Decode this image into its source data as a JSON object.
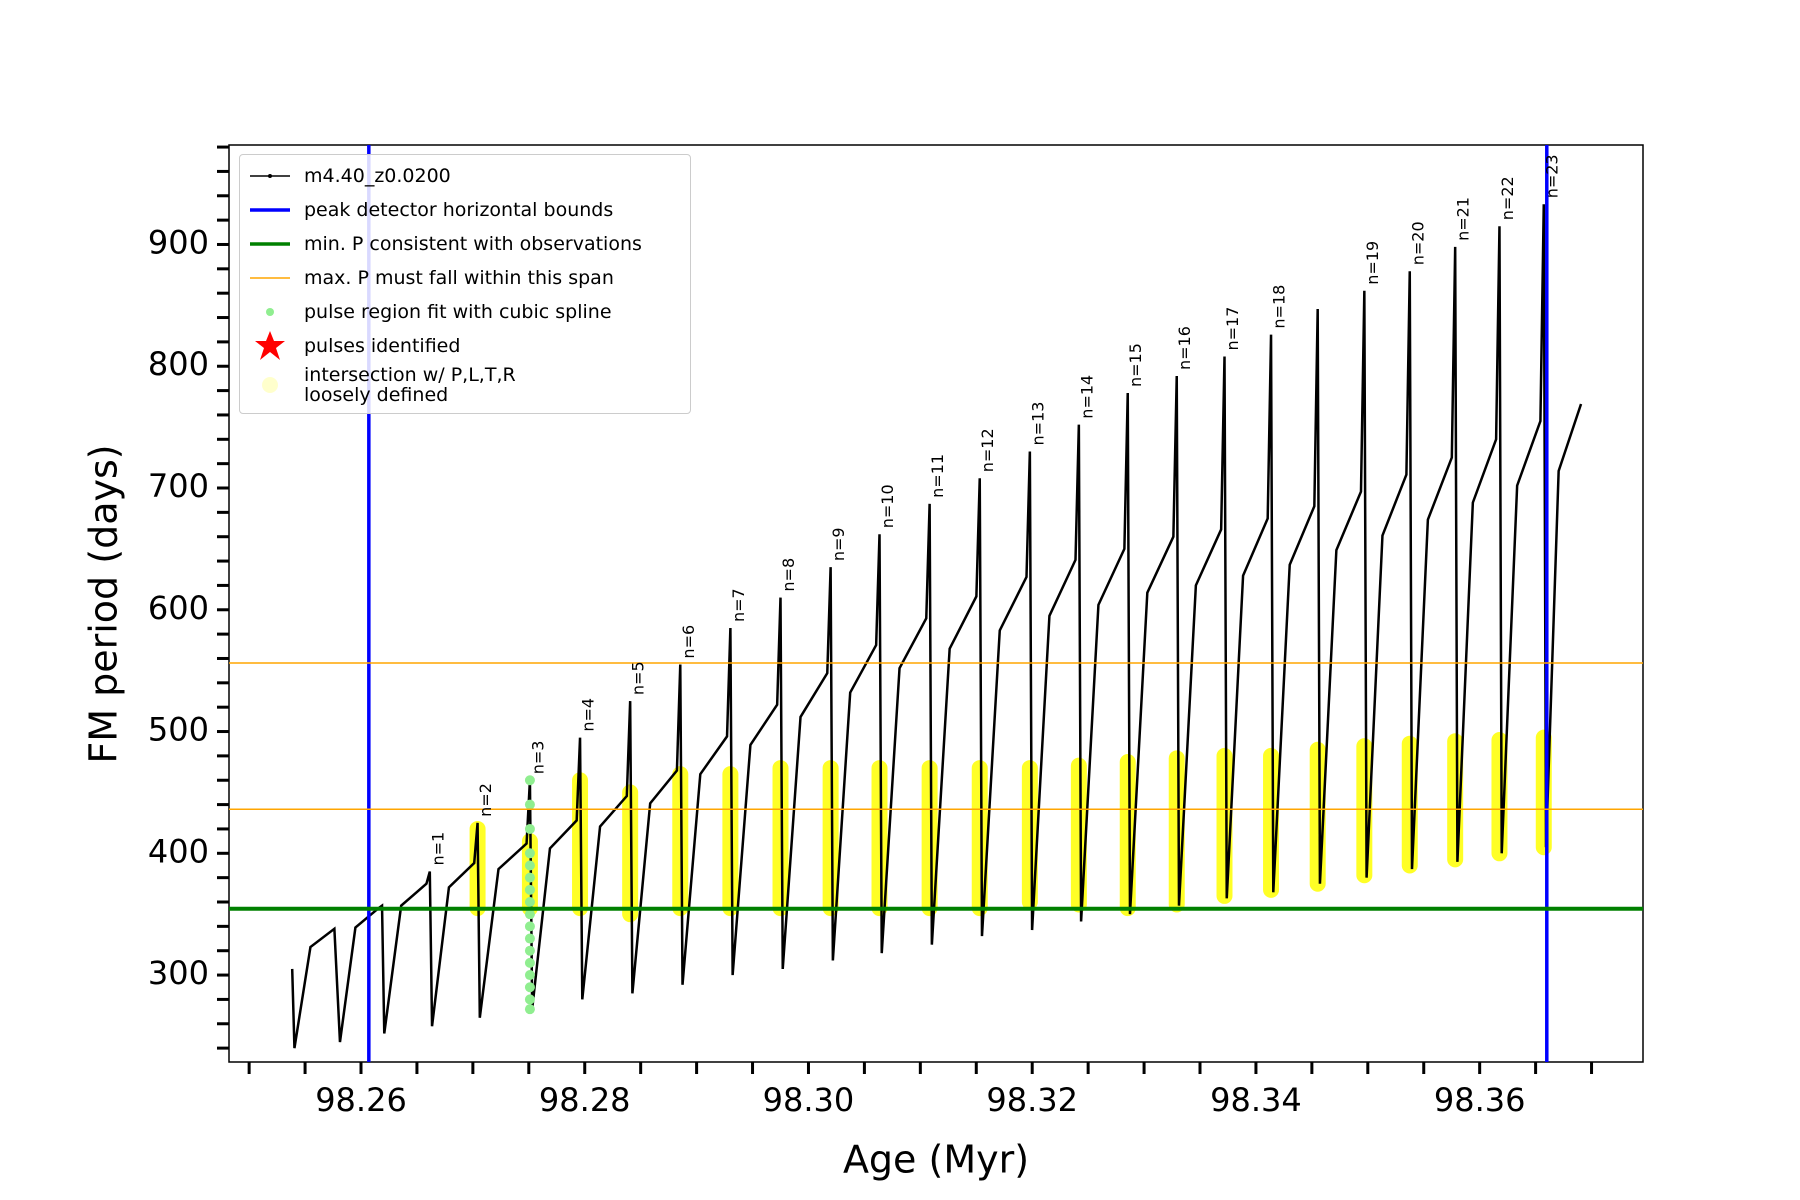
{
  "chart_data": {
    "type": "line",
    "xlabel": "Age (Myr)",
    "ylabel": "FM period (days)",
    "xlim": [
      98.2482,
      98.3746
    ],
    "ylim": [
      228.6,
      981.7
    ],
    "xticks": [
      98.26,
      98.28,
      {
        "value": 98.3,
        "label": "98.30"
      },
      98.32,
      98.34,
      98.36
    ],
    "xminor_ticks": [
      98.25,
      98.255,
      98.265,
      98.27,
      98.275,
      98.285,
      98.29,
      98.295,
      98.305,
      98.31,
      98.315,
      98.325,
      98.33,
      98.335,
      98.345,
      98.35,
      98.355,
      98.365,
      98.37
    ],
    "yticks": [
      300,
      400,
      500,
      600,
      700,
      800,
      900
    ],
    "yminor_ticks": [
      240,
      260,
      280,
      320,
      340,
      360,
      380,
      420,
      440,
      460,
      480,
      520,
      540,
      560,
      580,
      620,
      640,
      660,
      680,
      720,
      740,
      760,
      780,
      820,
      840,
      860,
      880,
      920,
      940,
      960,
      980
    ],
    "legend": "upper left",
    "series": [
      {
        "name": "m4.40_z0.0200",
        "color": "#000000",
        "kind": "line",
        "x": [
          98.25385,
          98.25405,
          98.25548,
          98.25762,
          98.25812,
          98.2595,
          98.26158,
          98.26188,
          98.26208,
          98.26359,
          98.26585,
          98.26615,
          98.26635,
          98.26786,
          98.27012,
          98.27042,
          98.27062,
          98.27229,
          98.2748,
          98.2751,
          98.2753,
          98.27689,
          98.27928,
          98.27958,
          98.27978,
          98.28137,
          98.28376,
          98.28406,
          98.28426,
          98.28585,
          98.28824,
          98.28854,
          98.28874,
          98.29033,
          98.29272,
          98.29302,
          98.29322,
          98.29481,
          98.2972,
          98.2975,
          98.2977,
          98.29929,
          98.30168,
          98.30198,
          98.30218,
          98.30373,
          98.30605,
          98.30635,
          98.30655,
          98.30814,
          98.31053,
          98.31083,
          98.31103,
          98.31262,
          98.31501,
          98.31531,
          98.31551,
          98.3171,
          98.31949,
          98.31979,
          98.31999,
          98.32154,
          98.32387,
          98.32417,
          98.32437,
          98.32592,
          98.32824,
          98.32854,
          98.32874,
          98.33029,
          98.33262,
          98.33292,
          98.33312,
          98.33463,
          98.33689,
          98.33719,
          98.33739,
          98.33885,
          98.34105,
          98.34135,
          98.34155,
          98.34302,
          98.34522,
          98.34552,
          98.34572,
          98.34719,
          98.34939,
          98.34969,
          98.34989,
          98.35131,
          98.35345,
          98.35375,
          98.35395,
          98.35537,
          98.35751,
          98.35781,
          98.35801,
          98.35939,
          98.36147,
          98.36177,
          98.36197,
          98.36335,
          98.36543,
          98.36573,
          98.36593,
          98.36706,
          98.36906
        ],
        "values": [
          305,
          240,
          323,
          338,
          245,
          339,
          355,
          357,
          252,
          357,
          375,
          385,
          258,
          372,
          392,
          425,
          265,
          387,
          408,
          460,
          272,
          404,
          427,
          495,
          280,
          422,
          447,
          525,
          285,
          441,
          468,
          555,
          292,
          465,
          496,
          585,
          300,
          489,
          522,
          610,
          305,
          512,
          548,
          635,
          312,
          532,
          571,
          662,
          318,
          552,
          593,
          687,
          325,
          568,
          611,
          708,
          332,
          583,
          627,
          730,
          337,
          595,
          641,
          752,
          344,
          604,
          650,
          778,
          350,
          614,
          660,
          792,
          357,
          620,
          666,
          808,
          363,
          628,
          675,
          826,
          368,
          637,
          685,
          847,
          375,
          649,
          697,
          862,
          380,
          661,
          711,
          878,
          387,
          674,
          725,
          898,
          393,
          688,
          740,
          915,
          400,
          702,
          755,
          933,
          405,
          714,
          769
        ]
      },
      {
        "name": "peak detector horizontal bounds",
        "color": "#0000ff",
        "kind": "vline",
        "x": [
          98.2607,
          98.366
        ]
      },
      {
        "name": "min. P consistent with observations",
        "color": "#008000",
        "kind": "hline",
        "values": [
          354.5
        ]
      },
      {
        "name": "max. P must fall within this span",
        "color": "#ffa500",
        "kind": "hline",
        "values": [
          436.2,
          556.3
        ]
      },
      {
        "name": "pulse region fit with cubic spline",
        "color": "#90ee90",
        "kind": "scatter",
        "x": [
          98.2751,
          98.2751,
          98.2751,
          98.2751,
          98.2751,
          98.2751,
          98.2751,
          98.2751,
          98.2751,
          98.2751,
          98.2751,
          98.2751,
          98.2751,
          98.2751,
          98.2751,
          98.2751,
          98.2751
        ],
        "values": [
          272,
          280,
          290,
          300,
          310,
          320,
          330,
          340,
          350,
          360,
          370,
          380,
          390,
          400,
          420,
          440,
          460
        ]
      },
      {
        "name": "pulses identified",
        "color": "#ff0000",
        "kind": "star",
        "x": [],
        "values": []
      },
      {
        "name": "intersection w/ P,L,T,R\nloosely defined",
        "color": "#ffff00",
        "kind": "band",
        "x": [
          98.27042,
          98.2751,
          98.27958,
          98.28406,
          98.28854,
          98.29302,
          98.2975,
          98.30198,
          98.30635,
          98.31083,
          98.31531,
          98.31979,
          98.32417,
          98.32854,
          98.33292,
          98.33719,
          98.34135,
          98.34552,
          98.34969,
          98.35375,
          98.35781,
          98.36177,
          98.36573
        ],
        "low": [
          355,
          355,
          355,
          350,
          355,
          355,
          355,
          355,
          355,
          355,
          355,
          360,
          358,
          355,
          358,
          365,
          370,
          375,
          382,
          390,
          395,
          400,
          405
        ],
        "high": [
          420,
          410,
          460,
          450,
          465,
          465,
          470,
          470,
          470,
          470,
          470,
          470,
          472,
          475,
          478,
          480,
          480,
          485,
          488,
          490,
          492,
          493,
          495
        ]
      }
    ],
    "annotations": [
      {
        "text": "n=1",
        "x": 98.26615,
        "y": 385
      },
      {
        "text": "n=2",
        "x": 98.27042,
        "y": 425
      },
      {
        "text": "n=3",
        "x": 98.2751,
        "y": 460
      },
      {
        "text": "n=4",
        "x": 98.27958,
        "y": 495
      },
      {
        "text": "n=5",
        "x": 98.28406,
        "y": 525
      },
      {
        "text": "n=6",
        "x": 98.28854,
        "y": 555
      },
      {
        "text": "n=7",
        "x": 98.29302,
        "y": 585
      },
      {
        "text": "n=8",
        "x": 98.2975,
        "y": 610
      },
      {
        "text": "n=9",
        "x": 98.30198,
        "y": 635
      },
      {
        "text": "n=10",
        "x": 98.30635,
        "y": 662
      },
      {
        "text": "n=11",
        "x": 98.31083,
        "y": 687
      },
      {
        "text": "n=12",
        "x": 98.31531,
        "y": 708
      },
      {
        "text": "n=13",
        "x": 98.31979,
        "y": 730
      },
      {
        "text": "n=14",
        "x": 98.32417,
        "y": 752
      },
      {
        "text": "n=15",
        "x": 98.32854,
        "y": 778
      },
      {
        "text": "n=16",
        "x": 98.33292,
        "y": 792
      },
      {
        "text": "n=17",
        "x": 98.33719,
        "y": 808
      },
      {
        "text": "n=18",
        "x": 98.34135,
        "y": 826
      },
      {
        "text": "n=19",
        "x": 98.34969,
        "y": 862
      },
      {
        "text": "n=20",
        "x": 98.35375,
        "y": 878
      },
      {
        "text": "n=21",
        "x": 98.35781,
        "y": 898
      },
      {
        "text": "n=22",
        "x": 98.36177,
        "y": 915
      },
      {
        "text": "n=23",
        "x": 98.36573,
        "y": 933
      }
    ]
  }
}
